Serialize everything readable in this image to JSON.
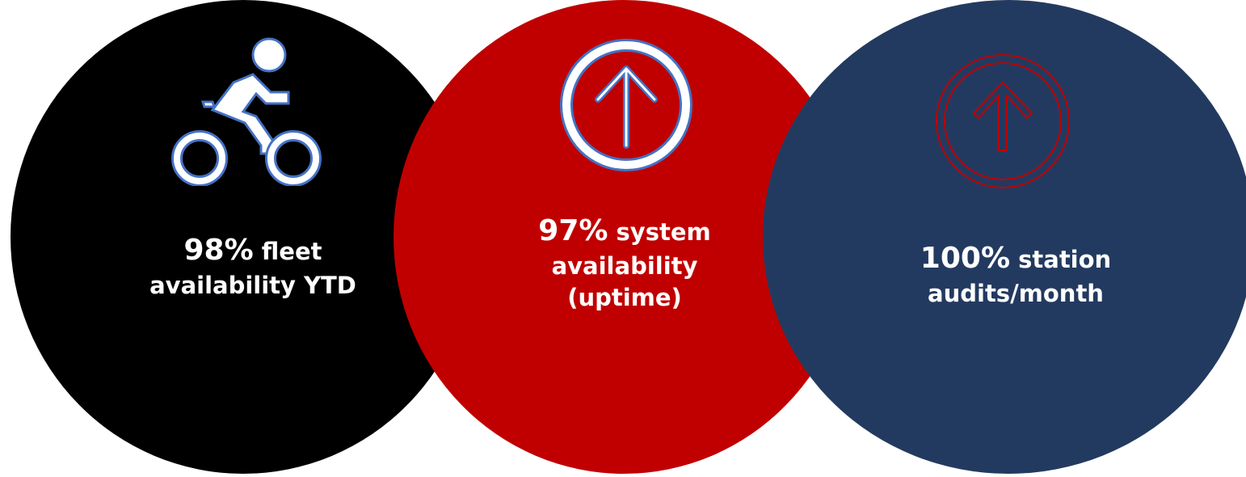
{
  "stats": [
    {
      "value": "98%",
      "text_line1": "fleet",
      "text_line2": "availability YTD",
      "text_line3": "",
      "color": "#000000",
      "icon": "bicycle-rider-icon"
    },
    {
      "value": "97%",
      "text_line1": "system",
      "text_line2": "availability",
      "text_line3": "(uptime)",
      "color": "#c00000",
      "icon": "up-arrow-circle-icon"
    },
    {
      "value": "100%",
      "text_line1": "station",
      "text_line2": "audits/month",
      "text_line3": "",
      "color": "#233a60",
      "icon": "up-arrow-circle-icon"
    }
  ]
}
